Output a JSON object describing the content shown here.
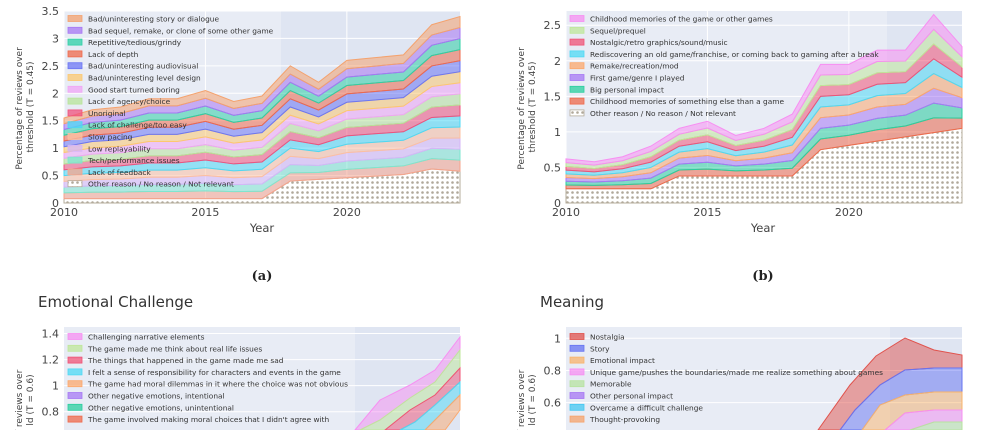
{
  "chart_data": [
    {
      "type": "area",
      "caption": "(a)",
      "xlabel": "Year",
      "ylabel": "Percentage of  reviews over threshold (T = 0.45)",
      "xlim": [
        2010,
        2024
      ],
      "ylim": [
        0,
        3.5
      ],
      "xticks": [
        "2010",
        "2015",
        "2020"
      ],
      "yticks": [
        "0",
        "0.5",
        "1",
        "1.5",
        "2",
        "2.5",
        "3",
        "3.5"
      ],
      "x": [
        2010,
        2011,
        2012,
        2013,
        2014,
        2015,
        2016,
        2017,
        2018,
        2019,
        2020,
        2021,
        2022,
        2023,
        2024
      ],
      "legend": [
        "Bad/uninteresting story or dialogue",
        "Bad sequel, remake, or clone of some other game",
        "Repetitive/tedious/grindy",
        "Lack of depth",
        "Bad/uninteresting audiovisual",
        "Bad/uninteresting level design",
        "Good start turned boring",
        "Lack of agency/choice",
        "Unoriginal",
        "Lack of challenge/too easy",
        "Slow pacing",
        "Low replayability",
        "Tech/performance issues",
        "Lack of feedback",
        "Other reason / No reason / Not relevant"
      ],
      "totals": [
        1.55,
        1.7,
        1.75,
        1.9,
        1.9,
        2.05,
        1.85,
        1.95,
        2.5,
        2.2,
        2.6,
        2.65,
        2.7,
        3.25,
        3.4
      ]
    },
    {
      "type": "area",
      "caption": "(b)",
      "xlabel": "Year",
      "ylabel": "Percentage of  reviews over threshold (T = 0.45)",
      "xlim": [
        2010,
        2024
      ],
      "ylim": [
        0,
        2.7
      ],
      "xticks": [
        "2010",
        "2015",
        "2020"
      ],
      "yticks": [
        "0",
        "0.5",
        "1",
        "1.5",
        "2",
        "2.5"
      ],
      "x": [
        2010,
        2011,
        2012,
        2013,
        2014,
        2015,
        2016,
        2017,
        2018,
        2019,
        2020,
        2021,
        2022,
        2023,
        2024
      ],
      "legend": [
        "Childhood memories of the game or other games",
        "Sequel/prequel",
        "Nostalgic/retro graphics/sound/music",
        "Rediscovering an old game/franchise, or coming back to gaming after a break",
        "Remake/recreation/mod",
        "First game/genre I played",
        "Big personal impact",
        "Childhood memories of something else than a game",
        "Other reason / No reason / Not relevant"
      ],
      "totals": [
        0.62,
        0.58,
        0.65,
        0.8,
        1.05,
        1.15,
        0.95,
        1.05,
        1.25,
        1.95,
        1.95,
        2.15,
        2.15,
        2.65,
        2.2
      ]
    },
    {
      "type": "area",
      "title": "Emotional Challenge",
      "ylabel": "f reviews over ld (T = 0.6)",
      "yticks": [
        "0.8",
        "1",
        "1.2",
        "1.4"
      ],
      "legend": [
        "Challenging narrative elements",
        "The game made me think about real life issues",
        "The things that happened in the game made me sad",
        "I felt a sense of responsibility for characters and events in the game",
        "The game had moral dilemmas in it where the choice was not obvious",
        "Other negative emotions, intentional",
        "Other negative emotions, unintentional",
        "The game involved making moral choices that I didn't agree with"
      ]
    },
    {
      "type": "area",
      "title": "Meaning",
      "ylabel": "f reviews over ld (T = 0.6)",
      "yticks": [
        "0.6",
        "0.8",
        "1"
      ],
      "legend": [
        "Nostalgia",
        "Story",
        "Emotional impact",
        "Unique game/pushes the boundaries/made me realize something about games",
        "Memorable",
        "Other personal impact",
        "Overcame a difficult challenge",
        "Thought-provoking"
      ]
    }
  ],
  "colors": {
    "a": [
      "#f4a26e",
      "#a777f3",
      "#2fd0a5",
      "#ef6a4b",
      "#6b76f4",
      "#fcc86f",
      "#f0a6f5",
      "#b8e49a",
      "#f0527c",
      "#4dd8f4",
      "#fcc0a0",
      "#d6b6f7",
      "#7ee6cf",
      "#f6a48c",
      "#b5ac9b"
    ],
    "b": [
      "#f78ff2",
      "#bfe79a",
      "#f05376",
      "#4fd9f4",
      "#fca86c",
      "#a779f4",
      "#2bcf9f",
      "#ef6a4b",
      "#b5ac9b"
    ],
    "c": [
      "#f78ff2",
      "#bfe79a",
      "#f05376",
      "#4fd9f4",
      "#fca86c",
      "#a779f4",
      "#2bcf9f",
      "#ef6a4b"
    ],
    "d": [
      "#e0524c",
      "#6673f2",
      "#f9b36b",
      "#f78ff2",
      "#b7e3a0",
      "#a777f3",
      "#45c8f2",
      "#f6a36b"
    ]
  }
}
